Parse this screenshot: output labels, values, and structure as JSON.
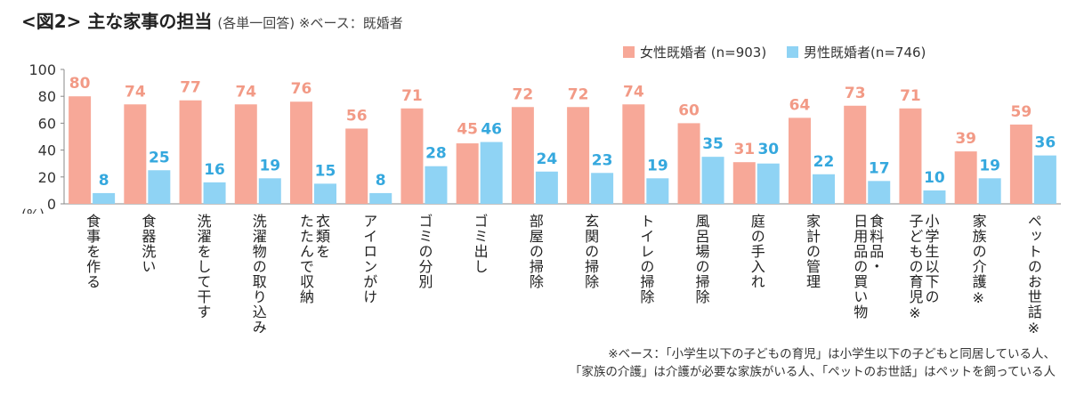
{
  "title": "<図2> 主な家事の担当",
  "subtitle": "(各単一回答) ※ベース：既婚者",
  "colors": {
    "female": "#f7a898",
    "male": "#8fd3f4",
    "female_label": "#f29a86",
    "male_label": "#35a8de"
  },
  "notes": [
    "※ベース：「小学生以下の子どもの育児」は小学生以下の子どもと同居している人、",
    "「家族の介護」は介護が必要な家族がいる人、「ペットのお世話」はペットを飼っている人"
  ],
  "chart_data": {
    "type": "bar",
    "categories": [
      "食事を作る",
      "食器洗い",
      "洗濯をして干す",
      "洗濯物の取り込み",
      "衣類をたたんで収納",
      "アイロンがけ",
      "ゴミの分別",
      "ゴミ出し",
      "部屋の掃除",
      "玄関の掃除",
      "トイレの掃除",
      "風呂場の掃除",
      "庭の手入れ",
      "家計の管理",
      "食料品・日用品の買い物",
      "小学生以下の子どもの育児※",
      "家族の介護※",
      "ペットのお世話※"
    ],
    "category_lines": [
      [
        "食事を作る"
      ],
      [
        "食器洗い"
      ],
      [
        "洗濯をして干す"
      ],
      [
        "洗濯物の取り込み"
      ],
      [
        "衣類を",
        "たたんで収納"
      ],
      [
        "アイロンがけ"
      ],
      [
        "ゴミの分別"
      ],
      [
        "ゴミ出し"
      ],
      [
        "部屋の掃除"
      ],
      [
        "玄関の掃除"
      ],
      [
        "トイレの掃除"
      ],
      [
        "風呂場の掃除"
      ],
      [
        "庭の手入れ"
      ],
      [
        "家計の管理"
      ],
      [
        "食料品・",
        "日用品の買い物"
      ],
      [
        "小学生以下の",
        "子どもの育児※"
      ],
      [
        "家族の介護※"
      ],
      [
        "ペットのお世話※"
      ]
    ],
    "series": [
      {
        "name": "女性既婚者 (n=903)",
        "values": [
          80,
          74,
          77,
          74,
          76,
          56,
          71,
          45,
          72,
          72,
          74,
          60,
          31,
          64,
          73,
          71,
          39,
          59
        ]
      },
      {
        "name": "男性既婚者(n=746)",
        "values": [
          8,
          25,
          16,
          19,
          15,
          8,
          28,
          46,
          24,
          23,
          19,
          35,
          30,
          22,
          17,
          10,
          19,
          36
        ]
      }
    ],
    "ylim": [
      0,
      100
    ],
    "yticks": [
      0,
      20,
      40,
      60,
      80,
      100
    ],
    "ylabel": "(%)",
    "grid": false,
    "legend_position": "top-right"
  }
}
